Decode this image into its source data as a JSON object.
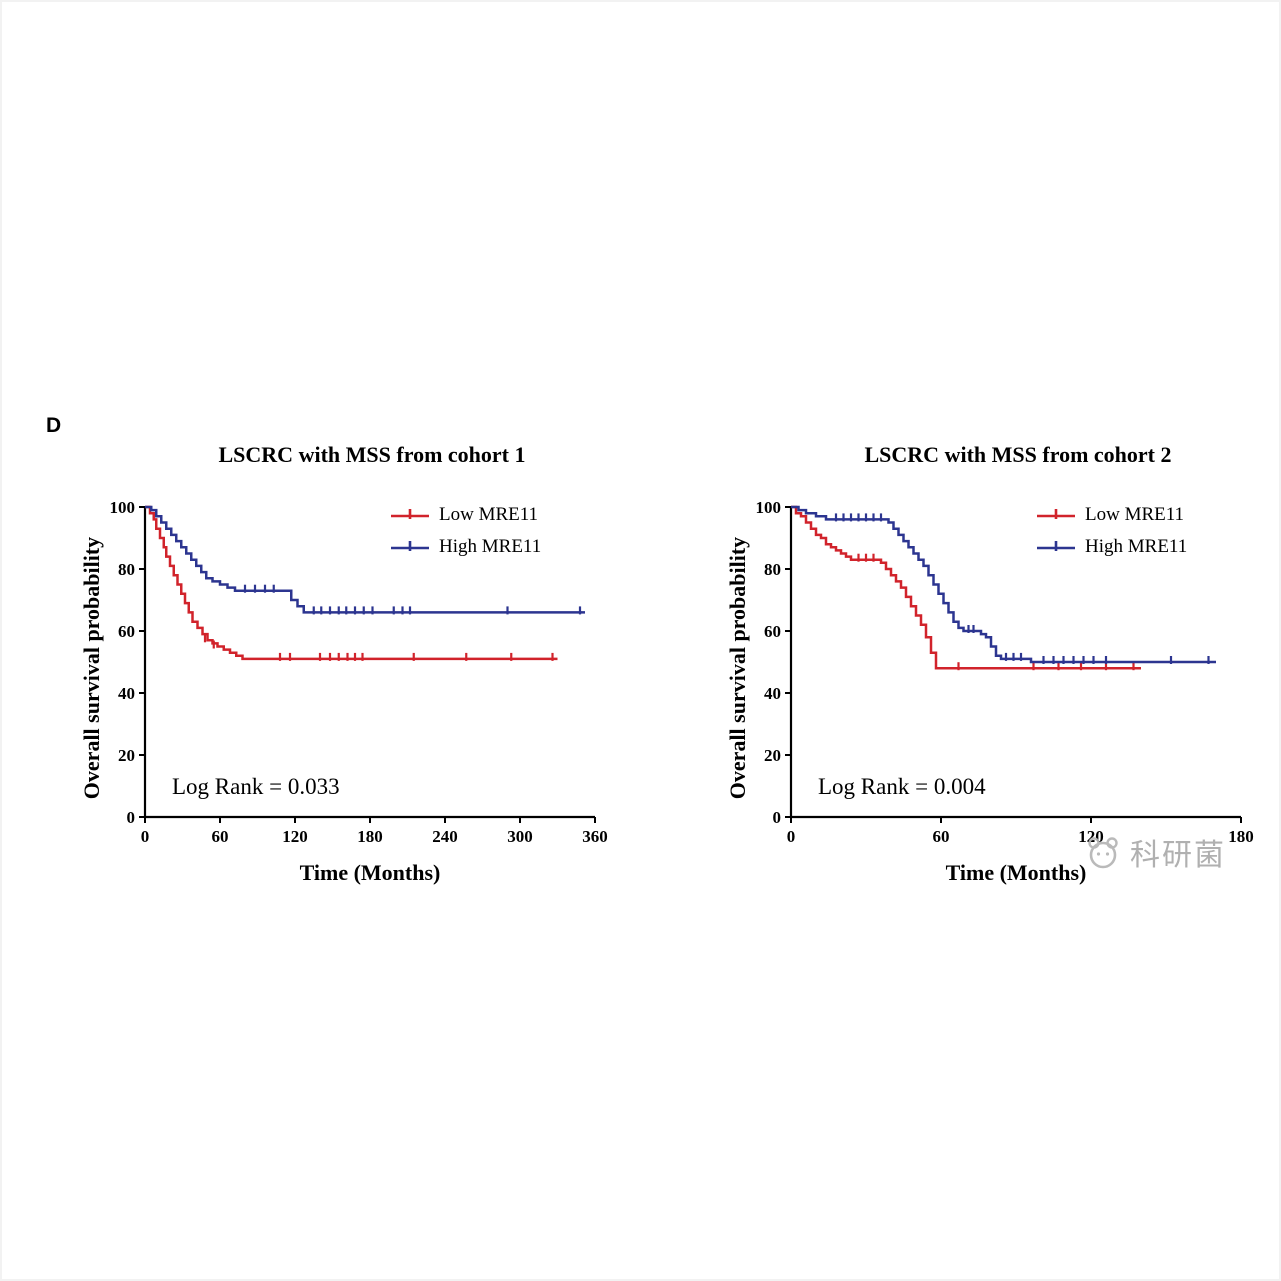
{
  "page": {
    "panel_label": "D"
  },
  "watermark": {
    "text": "科研菌"
  },
  "colors": {
    "low_mre11": "#d1232b",
    "high_mre11": "#2c3590",
    "axis": "#000000"
  },
  "chart_data": [
    {
      "type": "line",
      "subtype": "kaplan-meier-step",
      "title": "LSCRC with MSS from cohort 1",
      "xlabel": "Time (Months)",
      "ylabel": "Overall survival probability",
      "log_rank": "Log Rank = 0.033",
      "xlim": [
        0,
        360
      ],
      "ylim": [
        0,
        100
      ],
      "xticks": [
        0,
        60,
        120,
        180,
        240,
        300,
        360
      ],
      "yticks": [
        0,
        20,
        40,
        60,
        80,
        100
      ],
      "legend_position": "top-right-inside",
      "grid": false,
      "series": [
        {
          "name": "Low MRE11",
          "color": "#d1232b",
          "points": [
            [
              0,
              100
            ],
            [
              4,
              98
            ],
            [
              7,
              96
            ],
            [
              9,
              93
            ],
            [
              12,
              90
            ],
            [
              15,
              87
            ],
            [
              17,
              84
            ],
            [
              20,
              81
            ],
            [
              23,
              78
            ],
            [
              26,
              75
            ],
            [
              29,
              72
            ],
            [
              32,
              69
            ],
            [
              35,
              66
            ],
            [
              38,
              63
            ],
            [
              42,
              61
            ],
            [
              46,
              59
            ],
            [
              50,
              57
            ],
            [
              54,
              56
            ],
            [
              58,
              55
            ],
            [
              63,
              54
            ],
            [
              68,
              53
            ],
            [
              73,
              52
            ],
            [
              78,
              51
            ],
            [
              330,
              51
            ]
          ],
          "censors": [
            [
              48,
              57
            ],
            [
              55,
              55
            ],
            [
              108,
              51
            ],
            [
              116,
              51
            ],
            [
              140,
              51
            ],
            [
              148,
              51
            ],
            [
              155,
              51
            ],
            [
              162,
              51
            ],
            [
              168,
              51
            ],
            [
              174,
              51
            ],
            [
              215,
              51
            ],
            [
              257,
              51
            ],
            [
              293,
              51
            ],
            [
              326,
              51
            ]
          ]
        },
        {
          "name": "High MRE11",
          "color": "#2c3590",
          "points": [
            [
              0,
              100
            ],
            [
              5,
              99
            ],
            [
              9,
              97
            ],
            [
              13,
              95
            ],
            [
              17,
              93
            ],
            [
              21,
              91
            ],
            [
              25,
              89
            ],
            [
              29,
              87
            ],
            [
              33,
              85
            ],
            [
              37,
              83
            ],
            [
              41,
              81
            ],
            [
              45,
              79
            ],
            [
              49,
              77
            ],
            [
              54,
              76
            ],
            [
              60,
              75
            ],
            [
              66,
              74
            ],
            [
              72,
              73
            ],
            [
              117,
              70
            ],
            [
              122,
              68
            ],
            [
              127,
              66
            ],
            [
              352,
              66
            ]
          ],
          "censors": [
            [
              80,
              73
            ],
            [
              88,
              73
            ],
            [
              96,
              73
            ],
            [
              103,
              73
            ],
            [
              135,
              66
            ],
            [
              141,
              66
            ],
            [
              148,
              66
            ],
            [
              155,
              66
            ],
            [
              161,
              66
            ],
            [
              168,
              66
            ],
            [
              175,
              66
            ],
            [
              182,
              66
            ],
            [
              199,
              66
            ],
            [
              206,
              66
            ],
            [
              212,
              66
            ],
            [
              290,
              66
            ],
            [
              348,
              66
            ]
          ]
        }
      ]
    },
    {
      "type": "line",
      "subtype": "kaplan-meier-step",
      "title": "LSCRC with MSS from cohort 2",
      "xlabel": "Time (Months)",
      "ylabel": "Overall survival probability",
      "log_rank": "Log Rank = 0.004",
      "xlim": [
        0,
        180
      ],
      "ylim": [
        0,
        100
      ],
      "xticks": [
        0,
        60,
        120,
        180
      ],
      "yticks": [
        0,
        20,
        40,
        60,
        80,
        100
      ],
      "legend_position": "top-right-inside",
      "grid": false,
      "series": [
        {
          "name": "Low MRE11",
          "color": "#d1232b",
          "points": [
            [
              0,
              100
            ],
            [
              2,
              98
            ],
            [
              4,
              97
            ],
            [
              6,
              95
            ],
            [
              8,
              93
            ],
            [
              10,
              91
            ],
            [
              12,
              90
            ],
            [
              14,
              88
            ],
            [
              16,
              87
            ],
            [
              18,
              86
            ],
            [
              20,
              85
            ],
            [
              22,
              84
            ],
            [
              24,
              83
            ],
            [
              36,
              82
            ],
            [
              38,
              80
            ],
            [
              40,
              78
            ],
            [
              42,
              76
            ],
            [
              44,
              74
            ],
            [
              46,
              71
            ],
            [
              48,
              68
            ],
            [
              50,
              65
            ],
            [
              52,
              62
            ],
            [
              54,
              58
            ],
            [
              56,
              53
            ],
            [
              58,
              48
            ],
            [
              140,
              48
            ]
          ],
          "censors": [
            [
              27,
              83
            ],
            [
              30,
              83
            ],
            [
              33,
              83
            ],
            [
              67,
              48
            ],
            [
              97,
              48
            ],
            [
              107,
              48
            ],
            [
              116,
              48
            ],
            [
              126,
              48
            ],
            [
              137,
              48
            ]
          ]
        },
        {
          "name": "High MRE11",
          "color": "#2c3590",
          "points": [
            [
              0,
              100
            ],
            [
              3,
              99
            ],
            [
              6,
              98
            ],
            [
              10,
              97
            ],
            [
              14,
              96
            ],
            [
              39,
              95
            ],
            [
              41,
              93
            ],
            [
              43,
              91
            ],
            [
              45,
              89
            ],
            [
              47,
              87
            ],
            [
              49,
              85
            ],
            [
              51,
              83
            ],
            [
              53,
              81
            ],
            [
              55,
              78
            ],
            [
              57,
              75
            ],
            [
              59,
              72
            ],
            [
              61,
              69
            ],
            [
              63,
              66
            ],
            [
              65,
              63
            ],
            [
              67,
              61
            ],
            [
              69,
              60
            ],
            [
              76,
              59
            ],
            [
              78,
              58
            ],
            [
              80,
              55
            ],
            [
              82,
              52
            ],
            [
              84,
              51
            ],
            [
              96,
              50
            ],
            [
              170,
              50
            ]
          ],
          "censors": [
            [
              18,
              96
            ],
            [
              21,
              96
            ],
            [
              24,
              96
            ],
            [
              27,
              96
            ],
            [
              30,
              96
            ],
            [
              33,
              96
            ],
            [
              36,
              96
            ],
            [
              71,
              60
            ],
            [
              73,
              60
            ],
            [
              86,
              51
            ],
            [
              89,
              51
            ],
            [
              92,
              51
            ],
            [
              101,
              50
            ],
            [
              105,
              50
            ],
            [
              109,
              50
            ],
            [
              113,
              50
            ],
            [
              117,
              50
            ],
            [
              121,
              50
            ],
            [
              126,
              50
            ],
            [
              152,
              50
            ],
            [
              167,
              50
            ]
          ]
        }
      ]
    }
  ]
}
